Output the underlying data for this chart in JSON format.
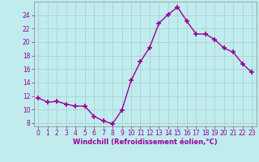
{
  "x": [
    0,
    1,
    2,
    3,
    4,
    5,
    6,
    7,
    8,
    9,
    10,
    11,
    12,
    13,
    14,
    15,
    16,
    17,
    18,
    19,
    20,
    21,
    22,
    23
  ],
  "y": [
    11.7,
    11.1,
    11.2,
    10.8,
    10.5,
    10.5,
    9.0,
    8.3,
    7.9,
    9.9,
    14.3,
    17.1,
    19.2,
    22.8,
    24.1,
    25.2,
    23.1,
    21.2,
    21.2,
    20.4,
    19.1,
    18.5,
    16.8,
    15.5
  ],
  "line_color": "#990099",
  "marker": "+",
  "bg_color": "#c0ecee",
  "grid_color": "#aacccc",
  "xlabel": "Windchill (Refroidissement éolien,°C)",
  "xlabel_color": "#990099",
  "tick_color": "#990099",
  "ylim": [
    7.5,
    26.0
  ],
  "xlim": [
    -0.5,
    23.5
  ],
  "yticks": [
    8,
    10,
    12,
    14,
    16,
    18,
    20,
    22,
    24
  ],
  "xticks": [
    0,
    1,
    2,
    3,
    4,
    5,
    6,
    7,
    8,
    9,
    10,
    11,
    12,
    13,
    14,
    15,
    16,
    17,
    18,
    19,
    20,
    21,
    22,
    23
  ],
  "xlabel_fontsize": 6.0,
  "tick_fontsize": 5.5,
  "linewidth": 1.0,
  "markersize": 4.5
}
